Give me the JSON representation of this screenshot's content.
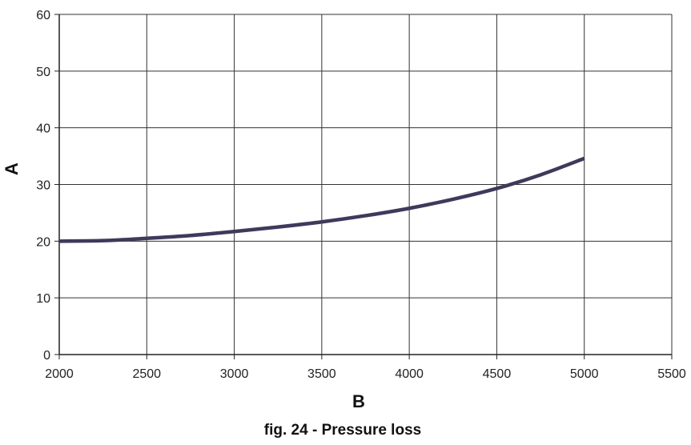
{
  "chart_data": {
    "type": "line",
    "title": "",
    "caption": "fig. 24 - Pressure loss",
    "xlabel": "B",
    "ylabel": "A",
    "xlim": [
      2000,
      5500
    ],
    "ylim": [
      0,
      60
    ],
    "xticks": [
      2000,
      2500,
      3000,
      3500,
      4000,
      4500,
      5000,
      5500
    ],
    "yticks": [
      0,
      10,
      20,
      30,
      40,
      50,
      60
    ],
    "grid": true,
    "legend": "none",
    "series": [
      {
        "color": "#3d3a5c",
        "x": [
          2000,
          2250,
          2500,
          2750,
          3000,
          3250,
          3500,
          3750,
          4000,
          4250,
          4500,
          4750,
          5000
        ],
        "y": [
          20.0,
          20.1,
          20.5,
          21.0,
          21.7,
          22.5,
          23.4,
          24.5,
          25.8,
          27.4,
          29.3,
          31.7,
          34.6
        ]
      }
    ]
  }
}
